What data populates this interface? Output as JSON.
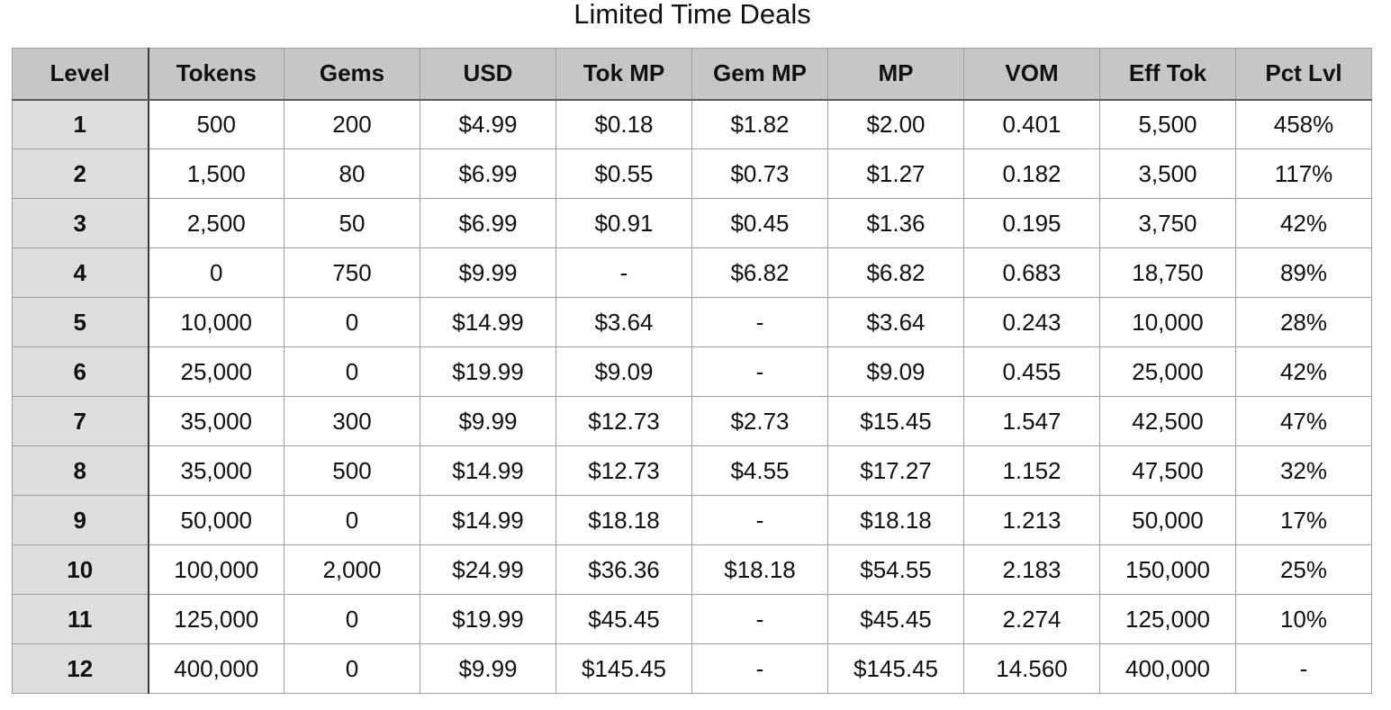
{
  "title": "Limited Time Deals",
  "columns": [
    "Level",
    "Tokens",
    "Gems",
    "USD",
    "Tok MP",
    "Gem MP",
    "MP",
    "VOM",
    "Eff Tok",
    "Pct Lvl"
  ],
  "rows": [
    [
      "1",
      "500",
      "200",
      "$4.99",
      "$0.18",
      "$1.82",
      "$2.00",
      "0.401",
      "5,500",
      "458%"
    ],
    [
      "2",
      "1,500",
      "80",
      "$6.99",
      "$0.55",
      "$0.73",
      "$1.27",
      "0.182",
      "3,500",
      "117%"
    ],
    [
      "3",
      "2,500",
      "50",
      "$6.99",
      "$0.91",
      "$0.45",
      "$1.36",
      "0.195",
      "3,750",
      "42%"
    ],
    [
      "4",
      "0",
      "750",
      "$9.99",
      "-",
      "$6.82",
      "$6.82",
      "0.683",
      "18,750",
      "89%"
    ],
    [
      "5",
      "10,000",
      "0",
      "$14.99",
      "$3.64",
      "-",
      "$3.64",
      "0.243",
      "10,000",
      "28%"
    ],
    [
      "6",
      "25,000",
      "0",
      "$19.99",
      "$9.09",
      "-",
      "$9.09",
      "0.455",
      "25,000",
      "42%"
    ],
    [
      "7",
      "35,000",
      "300",
      "$9.99",
      "$12.73",
      "$2.73",
      "$15.45",
      "1.547",
      "42,500",
      "47%"
    ],
    [
      "8",
      "35,000",
      "500",
      "$14.99",
      "$12.73",
      "$4.55",
      "$17.27",
      "1.152",
      "47,500",
      "32%"
    ],
    [
      "9",
      "50,000",
      "0",
      "$14.99",
      "$18.18",
      "-",
      "$18.18",
      "1.213",
      "50,000",
      "17%"
    ],
    [
      "10",
      "100,000",
      "2,000",
      "$24.99",
      "$36.36",
      "$18.18",
      "$54.55",
      "2.183",
      "150,000",
      "25%"
    ],
    [
      "11",
      "125,000",
      "0",
      "$19.99",
      "$45.45",
      "-",
      "$45.45",
      "2.274",
      "125,000",
      "10%"
    ],
    [
      "12",
      "400,000",
      "0",
      "$9.99",
      "$145.45",
      "-",
      "$145.45",
      "14.560",
      "400,000",
      "-"
    ]
  ],
  "colors": {
    "header_bg": "#c6c6c6",
    "level_col_bg": "#dedede",
    "grid_line": "#9e9e9e",
    "cell_bg": "#ffffff"
  }
}
